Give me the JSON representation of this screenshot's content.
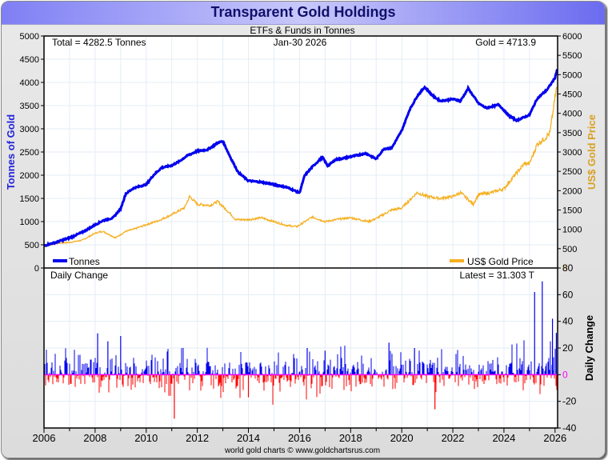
{
  "window": {
    "title": "Transparent Gold Holdings"
  },
  "chart_data": [
    {
      "type": "line",
      "title": "Transparent Gold Holdings",
      "subtitle": "ETFs & Funds in Tonnes",
      "annotations": {
        "total": "Total = 4282.5 Tonnes",
        "date": "Jan-30  2026",
        "gold": "Gold = 4713.9"
      },
      "ylabel_left": "Tonnes of Gold",
      "ylabel_right": "US$ Gold Price",
      "ylim_left": [
        0,
        5000
      ],
      "ylim_right": [
        0,
        6000
      ],
      "yticks_left": [
        "0",
        "500",
        "1000",
        "1500",
        "2000",
        "2500",
        "3000",
        "3500",
        "4000",
        "4500",
        "5000"
      ],
      "yticks_right": [
        "0",
        "500",
        "1000",
        "1500",
        "2000",
        "2500",
        "3000",
        "3500",
        "4000",
        "4500",
        "5000",
        "5500",
        "6000"
      ],
      "xlim": [
        2006,
        2026.1
      ],
      "grid": true,
      "legend": {
        "tonnes": "Tonnes",
        "gold": "US$ Gold Price"
      },
      "colors": {
        "tonnes": "#0000ee",
        "gold": "#f5b021"
      },
      "series": [
        {
          "name": "Tonnes",
          "x": [
            2006.0,
            2006.5,
            2007.0,
            2007.5,
            2008.0,
            2008.3,
            2008.7,
            2009.0,
            2009.2,
            2009.5,
            2010.0,
            2010.3,
            2010.6,
            2011.0,
            2011.3,
            2011.6,
            2012.0,
            2012.4,
            2012.8,
            2013.0,
            2013.3,
            2013.6,
            2014.0,
            2014.5,
            2015.0,
            2015.5,
            2016.0,
            2016.2,
            2016.5,
            2016.9,
            2017.1,
            2017.4,
            2018.0,
            2018.6,
            2019.0,
            2019.3,
            2019.6,
            2020.0,
            2020.3,
            2020.6,
            2020.9,
            2021.2,
            2021.5,
            2022.0,
            2022.3,
            2022.6,
            2023.0,
            2023.3,
            2023.8,
            2024.2,
            2024.5,
            2025.0,
            2025.3,
            2025.7,
            2026.0,
            2026.08
          ],
          "y": [
            480,
            560,
            650,
            770,
            930,
            1020,
            1080,
            1280,
            1600,
            1720,
            1800,
            2010,
            2160,
            2210,
            2300,
            2420,
            2520,
            2550,
            2700,
            2730,
            2380,
            2060,
            1880,
            1850,
            1800,
            1740,
            1620,
            1990,
            2180,
            2390,
            2200,
            2330,
            2400,
            2470,
            2350,
            2570,
            2580,
            2960,
            3400,
            3700,
            3900,
            3720,
            3600,
            3640,
            3600,
            3870,
            3550,
            3450,
            3520,
            3280,
            3180,
            3300,
            3650,
            3850,
            4100,
            4282
          ]
        },
        {
          "name": "US$ Gold Price",
          "x": [
            2006.0,
            2006.5,
            2007.0,
            2007.5,
            2008.0,
            2008.3,
            2008.8,
            2009.2,
            2009.5,
            2010.0,
            2010.5,
            2011.0,
            2011.5,
            2011.7,
            2012.0,
            2012.5,
            2012.8,
            2013.3,
            2013.5,
            2014.0,
            2014.5,
            2015.0,
            2015.5,
            2015.9,
            2016.5,
            2017.0,
            2017.5,
            2018.0,
            2018.7,
            2019.0,
            2019.6,
            2020.0,
            2020.6,
            2021.0,
            2021.5,
            2022.0,
            2022.3,
            2022.8,
            2023.0,
            2023.5,
            2024.0,
            2024.3,
            2024.8,
            2025.0,
            2025.3,
            2025.6,
            2025.8,
            2026.0,
            2026.07
          ],
          "y": [
            550,
            640,
            660,
            720,
            900,
            950,
            780,
            950,
            1000,
            1120,
            1230,
            1380,
            1560,
            1850,
            1650,
            1620,
            1720,
            1400,
            1250,
            1250,
            1300,
            1200,
            1100,
            1070,
            1320,
            1200,
            1260,
            1300,
            1200,
            1280,
            1500,
            1550,
            1950,
            1850,
            1800,
            1850,
            1950,
            1650,
            1900,
            1950,
            2050,
            2300,
            2700,
            2700,
            3200,
            3350,
            3500,
            4400,
            4714
          ]
        }
      ]
    },
    {
      "type": "bar",
      "title": "Daily Change",
      "annotation": "Latest = 31.303 T",
      "ylabel": "Daily Change",
      "ylim": [
        -40,
        80
      ],
      "yticks": [
        "-40",
        "-20",
        "0",
        "20",
        "40",
        "60",
        "80"
      ],
      "xlim": [
        2006,
        2026.1
      ],
      "xticks": [
        "2006",
        "2008",
        "2010",
        "2012",
        "2014",
        "2016",
        "2018",
        "2020",
        "2022",
        "2024",
        "2026"
      ],
      "colors": {
        "positive": "#0000ee",
        "negative": "#ff0000",
        "zero": "#ff00ff"
      },
      "highlights": [
        {
          "x": 2008.1,
          "y": 31
        },
        {
          "x": 2008.5,
          "y": 25
        },
        {
          "x": 2009.0,
          "y": 29
        },
        {
          "x": 2011.1,
          "y": -33
        },
        {
          "x": 2014.0,
          "y": -17
        },
        {
          "x": 2016.3,
          "y": 20
        },
        {
          "x": 2017.0,
          "y": 18
        },
        {
          "x": 2019.5,
          "y": 24
        },
        {
          "x": 2020.5,
          "y": 20
        },
        {
          "x": 2021.3,
          "y": -26
        },
        {
          "x": 2025.2,
          "y": 62
        },
        {
          "x": 2025.5,
          "y": 70
        },
        {
          "x": 2025.9,
          "y": 42
        },
        {
          "x": 2026.05,
          "y": 31.303
        }
      ],
      "footer": "world gold charts © www.goldchartsrus.com"
    }
  ]
}
